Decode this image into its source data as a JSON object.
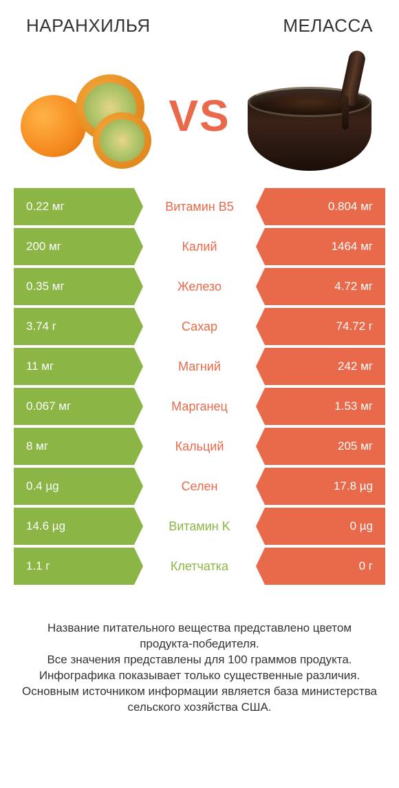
{
  "colors": {
    "green": "#8bb544",
    "orange": "#e86a4a",
    "text": "#333333",
    "white": "#ffffff"
  },
  "header": {
    "left_title": "НАРАНХИЛЬЯ",
    "right_title": "МЕЛАССА",
    "vs_label": "VS"
  },
  "rows": [
    {
      "nutrient": "Витамин B5",
      "left_value": "0.22 мг",
      "right_value": "0.804 мг",
      "winner": "right"
    },
    {
      "nutrient": "Калий",
      "left_value": "200 мг",
      "right_value": "1464 мг",
      "winner": "right"
    },
    {
      "nutrient": "Железо",
      "left_value": "0.35 мг",
      "right_value": "4.72 мг",
      "winner": "right"
    },
    {
      "nutrient": "Сахар",
      "left_value": "3.74 г",
      "right_value": "74.72 г",
      "winner": "right"
    },
    {
      "nutrient": "Магний",
      "left_value": "11 мг",
      "right_value": "242 мг",
      "winner": "right"
    },
    {
      "nutrient": "Марганец",
      "left_value": "0.067 мг",
      "right_value": "1.53 мг",
      "winner": "right"
    },
    {
      "nutrient": "Кальций",
      "left_value": "8 мг",
      "right_value": "205 мг",
      "winner": "right"
    },
    {
      "nutrient": "Селен",
      "left_value": "0.4 µg",
      "right_value": "17.8 µg",
      "winner": "right"
    },
    {
      "nutrient": "Витамин K",
      "left_value": "14.6 µg",
      "right_value": "0 µg",
      "winner": "left"
    },
    {
      "nutrient": "Клетчатка",
      "left_value": "1.1 г",
      "right_value": "0 г",
      "winner": "left"
    }
  ],
  "footer": {
    "line1": "Название питательного вещества представлено цветом продукта-победителя.",
    "line2": "Все значения представлены для 100 граммов продукта.",
    "line3": "Инфографика показывает только существенные различия.",
    "line4": "Основным источником информации является база министерства сельского хозяйства США."
  }
}
